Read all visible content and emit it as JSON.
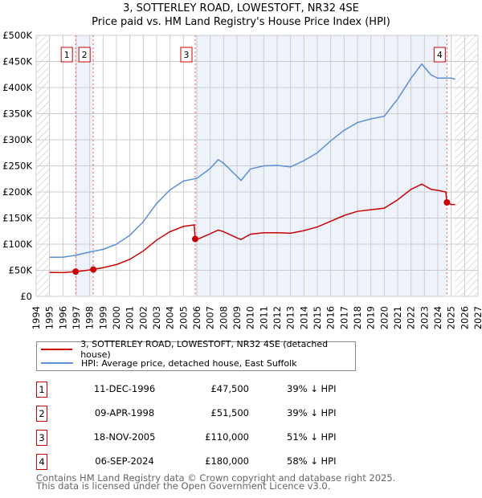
{
  "header": {
    "title": "3, SOTTERLEY ROAD, LOWESTOFT, NR32 4SE",
    "subtitle": "Price paid vs. HM Land Registry's House Price Index (HPI)"
  },
  "chart_data": {
    "type": "line",
    "xlim": [
      1994,
      2027
    ],
    "ylim": [
      0,
      500000
    ],
    "x_ticks": [
      "1994",
      "1995",
      "1996",
      "1997",
      "1998",
      "1999",
      "2000",
      "2001",
      "2002",
      "2003",
      "2004",
      "2005",
      "2006",
      "2007",
      "2008",
      "2009",
      "2010",
      "2011",
      "2012",
      "2013",
      "2014",
      "2015",
      "2016",
      "2017",
      "2018",
      "2019",
      "2020",
      "2021",
      "2022",
      "2023",
      "2024",
      "2025",
      "2026",
      "2027"
    ],
    "y_ticks": [
      {
        "v": 0,
        "label": "£0"
      },
      {
        "v": 50000,
        "label": "£50K"
      },
      {
        "v": 100000,
        "label": "£100K"
      },
      {
        "v": 150000,
        "label": "£150K"
      },
      {
        "v": 200000,
        "label": "£200K"
      },
      {
        "v": 250000,
        "label": "£250K"
      },
      {
        "v": 300000,
        "label": "£300K"
      },
      {
        "v": 350000,
        "label": "£350K"
      },
      {
        "v": 400000,
        "label": "£400K"
      },
      {
        "v": 450000,
        "label": "£450K"
      },
      {
        "v": 500000,
        "label": "£500K"
      }
    ],
    "grid": true,
    "hatched_before": 1995,
    "hatched_after": 2025.3,
    "series": [
      {
        "name": "3, SOTTERLEY ROAD, LOWESTOFT, NR32 4SE (detached house)",
        "color": "#cc0000",
        "x": [
          1995,
          1996,
          1996.95,
          1997.5,
          1998.27,
          1999,
          2000,
          2001,
          2002,
          2003,
          2004,
          2005,
          2005.8,
          2005.88,
          2006.2,
          2007,
          2007.6,
          2008,
          2009,
          2009.3,
          2010,
          2011,
          2012,
          2013,
          2014,
          2015,
          2016,
          2017,
          2018,
          2019,
          2020,
          2021,
          2022,
          2022.8,
          2023.5,
          2024,
          2024.6,
          2024.68,
          2025,
          2025.3
        ],
        "y": [
          46000,
          45500,
          47500,
          49000,
          51500,
          55000,
          61000,
          71000,
          87000,
          108000,
          124000,
          134000,
          137000,
          110000,
          111000,
          120000,
          127000,
          124000,
          112000,
          109000,
          119000,
          122000,
          122000,
          121000,
          126000,
          133000,
          144000,
          155000,
          163000,
          166000,
          169000,
          185000,
          205000,
          215000,
          205000,
          203000,
          200000,
          180000,
          176000,
          176000
        ]
      },
      {
        "name": "HPI: Average price, detached house, East Suffolk",
        "color": "#5b8fd6",
        "x": [
          1995,
          1996,
          1997,
          1998,
          1999,
          2000,
          2001,
          2002,
          2003,
          2004,
          2005,
          2006,
          2007,
          2007.6,
          2008,
          2009,
          2009.3,
          2010,
          2011,
          2012,
          2013,
          2014,
          2015,
          2016,
          2017,
          2018,
          2019,
          2020,
          2021,
          2022,
          2022.8,
          2023.5,
          2024,
          2024.6,
          2025,
          2025.3
        ],
        "y": [
          75000,
          75000,
          79000,
          85000,
          90000,
          100000,
          117000,
          143000,
          178000,
          204000,
          221000,
          226000,
          245000,
          262000,
          255000,
          230000,
          222000,
          244000,
          250000,
          251000,
          248000,
          260000,
          275000,
          298000,
          318000,
          333000,
          340000,
          345000,
          378000,
          418000,
          445000,
          424000,
          418000,
          418000,
          418000,
          416000
        ]
      }
    ],
    "sales": [
      {
        "n": "1",
        "x": 1996.95,
        "y": 47500
      },
      {
        "n": "2",
        "x": 1998.27,
        "y": 51500
      },
      {
        "n": "3",
        "x": 2005.88,
        "y": 110000
      },
      {
        "n": "4",
        "x": 2024.68,
        "y": 180000
      }
    ]
  },
  "legend": {
    "items": [
      {
        "label": "3, SOTTERLEY ROAD, LOWESTOFT, NR32 4SE (detached house)",
        "color": "#cc0000"
      },
      {
        "label": "HPI: Average price, detached house, East Suffolk",
        "color": "#5b8fd6"
      }
    ]
  },
  "transactions": [
    {
      "n": "1",
      "date": "11-DEC-1996",
      "price": "£47,500",
      "hpi": "39% ↓ HPI"
    },
    {
      "n": "2",
      "date": "09-APR-1998",
      "price": "£51,500",
      "hpi": "39% ↓ HPI"
    },
    {
      "n": "3",
      "date": "18-NOV-2005",
      "price": "£110,000",
      "hpi": "51% ↓ HPI"
    },
    {
      "n": "4",
      "date": "06-SEP-2024",
      "price": "£180,000",
      "hpi": "58% ↓ HPI"
    }
  ],
  "footer": {
    "line1": "Contains HM Land Registry data © Crown copyright and database right 2025.",
    "line2": "This data is licensed under the Open Government Licence v3.0."
  }
}
